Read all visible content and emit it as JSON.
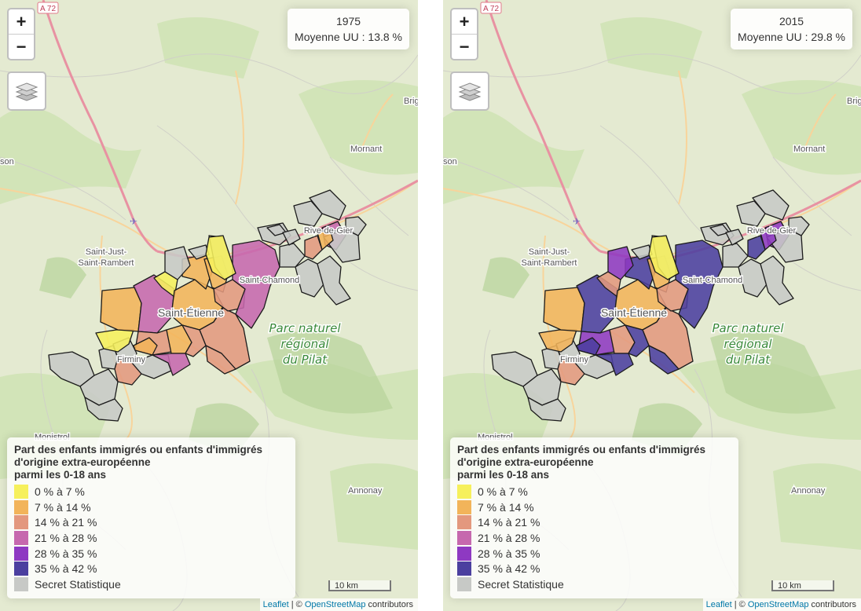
{
  "maps": [
    {
      "info": {
        "year": "1975",
        "mean_text": "Moyenne UU : 13.8 %"
      },
      "communes": [
        {
          "cls": 6
        },
        {
          "cls": 6
        },
        {
          "cls": 6
        },
        {
          "cls": 6
        },
        {
          "cls": 6
        },
        {
          "cls": 2
        },
        {
          "cls": 0
        },
        {
          "cls": 1
        },
        {
          "cls": 3
        },
        {
          "cls": 0
        },
        {
          "cls": 1
        },
        {
          "cls": 2
        },
        {
          "cls": 2
        },
        {
          "cls": 6
        },
        {
          "cls": 1
        },
        {
          "cls": 1
        },
        {
          "cls": 3
        },
        {
          "cls": 2
        },
        {
          "cls": 2
        },
        {
          "cls": 1
        },
        {
          "cls": 1
        },
        {
          "cls": 6
        },
        {
          "cls": 6
        },
        {
          "cls": 6
        },
        {
          "cls": 2
        },
        {
          "cls": 6
        },
        {
          "cls": 3
        },
        {
          "cls": 0
        },
        {
          "cls": 6
        },
        {
          "cls": 6
        },
        {
          "cls": 6
        },
        {
          "cls": 6
        },
        {
          "cls": 2
        },
        {
          "cls": 3
        },
        {
          "cls": 6
        },
        {
          "cls": 6
        },
        {
          "cls": 6
        },
        {
          "cls": 6
        },
        {
          "cls": 6
        },
        {
          "cls": 1
        }
      ]
    },
    {
      "info": {
        "year": "2015",
        "mean_text": "Moyenne UU : 29.8 %"
      },
      "communes": [
        {
          "cls": 6
        },
        {
          "cls": 6
        },
        {
          "cls": 6
        },
        {
          "cls": 6
        },
        {
          "cls": 6
        },
        {
          "cls": 2
        },
        {
          "cls": 1
        },
        {
          "cls": 1
        },
        {
          "cls": 5
        },
        {
          "cls": 2
        },
        {
          "cls": 1
        },
        {
          "cls": 2
        },
        {
          "cls": 4
        },
        {
          "cls": 6
        },
        {
          "cls": 2
        },
        {
          "cls": 5
        },
        {
          "cls": 5
        },
        {
          "cls": 5
        },
        {
          "cls": 5
        },
        {
          "cls": 5
        },
        {
          "cls": 1
        },
        {
          "cls": 4
        },
        {
          "cls": 6
        },
        {
          "cls": 6
        },
        {
          "cls": 2
        },
        {
          "cls": 6
        },
        {
          "cls": 5
        },
        {
          "cls": 0
        },
        {
          "cls": 6
        },
        {
          "cls": 6
        },
        {
          "cls": 6
        },
        {
          "cls": 6
        },
        {
          "cls": 5
        },
        {
          "cls": 4
        },
        {
          "cls": 6
        },
        {
          "cls": 6
        },
        {
          "cls": 6
        },
        {
          "cls": 6
        },
        {
          "cls": 6
        },
        {
          "cls": 4
        }
      ]
    }
  ],
  "legend": {
    "title_line1": "Part des enfants immigrés ou enfants d'immigrés",
    "title_line2": "d'origine extra-européenne",
    "title_line3": "parmi les 0-18 ans",
    "classes": [
      {
        "label": "0 % à 7 %",
        "color": "#f6f05c"
      },
      {
        "label": "7 % à 14 %",
        "color": "#f2b45a"
      },
      {
        "label": "14 % à 21 %",
        "color": "#e3987e"
      },
      {
        "label": "21 % à 28 %",
        "color": "#c668ae"
      },
      {
        "label": "28 % à 35 %",
        "color": "#8e39c2"
      },
      {
        "label": "35 % à 42 %",
        "color": "#4b3f9f"
      },
      {
        "label": "Secret Statistique",
        "color": "#c7c9c6"
      }
    ]
  },
  "map_labels": {
    "road": "A 72",
    "brig": "Brig",
    "mornant": "Mornant",
    "son": "son",
    "saint_just_1": "Saint-Just-",
    "saint_just_2": "Saint-Rambert",
    "saint_chamond": "Saint-Chamond",
    "saint_etienne": "Saint-Étienne",
    "firminy": "Firminy",
    "rive_de_gier": "Rive-de-Gier",
    "parc_1": "Parc naturel",
    "parc_2": "régional",
    "parc_3": "du Pilat",
    "monistrol": "Monistrol",
    "annonay": "Annonay"
  },
  "controls": {
    "zoom_in": "+",
    "zoom_out": "−"
  },
  "scale": {
    "label": "10 km"
  },
  "attribution": {
    "leaflet": "Leaflet",
    "sep": " | © ",
    "osm": "OpenStreetMap",
    "tail": " contributors"
  }
}
